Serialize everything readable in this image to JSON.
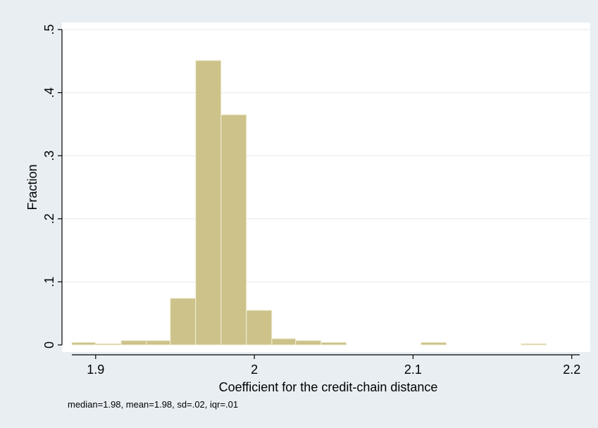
{
  "chart_data": {
    "type": "bar",
    "subtype": "histogram",
    "xlabel": "Coefficient for the credit-chain distance",
    "ylabel": "Fraction",
    "xlim": [
      1.885,
      2.205
    ],
    "ylim": [
      0,
      0.5
    ],
    "xticks": [
      {
        "value": 1.9,
        "label": "1.9"
      },
      {
        "value": 2.0,
        "label": "2"
      },
      {
        "value": 2.1,
        "label": "2.1"
      },
      {
        "value": 2.2,
        "label": "2.2"
      }
    ],
    "yticks": [
      {
        "value": 0,
        "label": "0"
      },
      {
        "value": 0.1,
        "label": ".1"
      },
      {
        "value": 0.2,
        "label": ".2"
      },
      {
        "value": 0.3,
        "label": ".3"
      },
      {
        "value": 0.4,
        "label": ".4"
      },
      {
        "value": 0.5,
        "label": ".5"
      }
    ],
    "grid": true,
    "bar_color": "#ccc28a",
    "bar_edge_color": "#f3efd6",
    "bins": [
      {
        "x0": 1.885,
        "x1": 1.9,
        "value": 0.004
      },
      {
        "x0": 1.9,
        "x1": 1.916,
        "value": 0.002
      },
      {
        "x0": 1.916,
        "x1": 1.932,
        "value": 0.007
      },
      {
        "x0": 1.932,
        "x1": 1.947,
        "value": 0.007
      },
      {
        "x0": 1.947,
        "x1": 1.963,
        "value": 0.074
      },
      {
        "x0": 1.963,
        "x1": 1.979,
        "value": 0.451
      },
      {
        "x0": 1.979,
        "x1": 1.995,
        "value": 0.365
      },
      {
        "x0": 1.995,
        "x1": 2.011,
        "value": 0.055
      },
      {
        "x0": 2.011,
        "x1": 2.026,
        "value": 0.01
      },
      {
        "x0": 2.026,
        "x1": 2.042,
        "value": 0.007
      },
      {
        "x0": 2.042,
        "x1": 2.058,
        "value": 0.004
      },
      {
        "x0": 2.105,
        "x1": 2.121,
        "value": 0.004
      },
      {
        "x0": 2.168,
        "x1": 2.184,
        "value": 0.002
      }
    ],
    "note": "median=1.98, mean=1.98, sd=.02, iqr=.01"
  }
}
